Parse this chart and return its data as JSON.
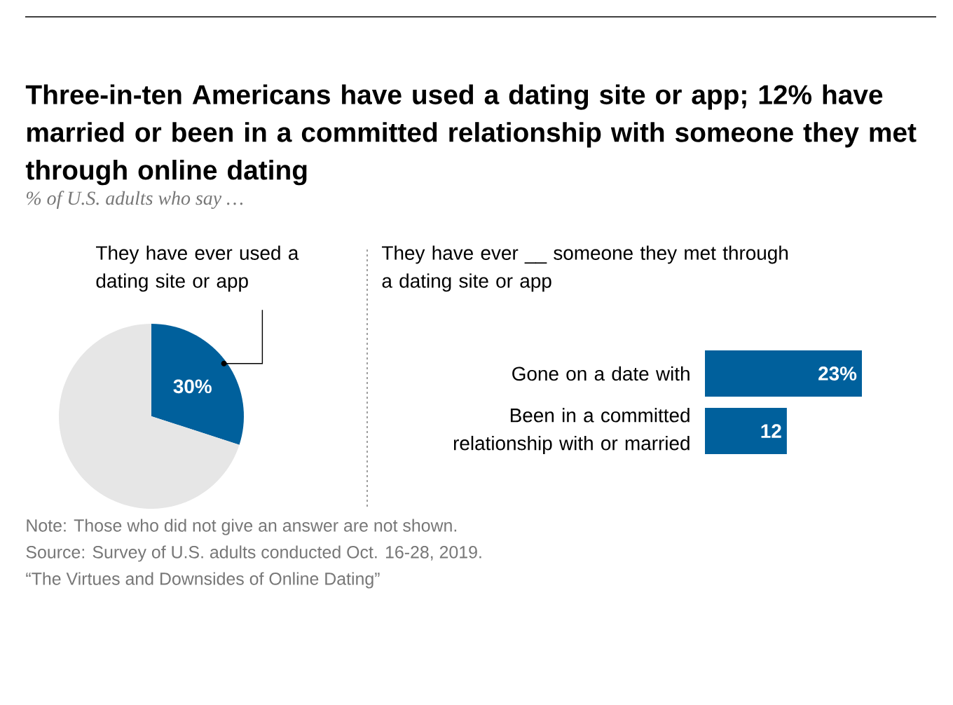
{
  "chart_data": [
    {
      "type": "other",
      "title": "Three-in-ten Americans have used a dating site or app; 12% have married or been in a committed relationship with someone they met through online dating",
      "subtitle": "% of U.S. adults who say …",
      "annotations": [
        "Note: Those who did not give an answer are not shown.",
        "Source: Survey of U.S. adults conducted Oct. 16-28, 2019.",
        "“The Virtues and Downsides of Online Dating”"
      ]
    },
    {
      "type": "pie",
      "title": "They have ever used a dating site or app",
      "categories": [
        null,
        null
      ],
      "values": [
        30,
        70
      ],
      "colors": [
        "#00609c",
        "#e6e6e6"
      ],
      "value_labels": [
        "30%",
        null
      ]
    },
    {
      "type": "bar",
      "orientation": "horizontal",
      "title": "They have ever __ someone they met through a dating site or app",
      "categories": [
        "Gone on a date with",
        "Been in a committed relationship with or married"
      ],
      "values": [
        23,
        12
      ],
      "color": "#00609c",
      "value_labels": [
        "23%",
        "12"
      ]
    }
  ]
}
